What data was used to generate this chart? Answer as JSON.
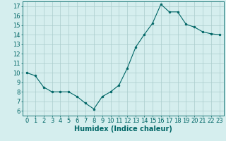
{
  "x": [
    0,
    1,
    2,
    3,
    4,
    5,
    6,
    7,
    8,
    9,
    10,
    11,
    12,
    13,
    14,
    15,
    16,
    17,
    18,
    19,
    20,
    21,
    22,
    23
  ],
  "y": [
    10,
    9.7,
    8.5,
    8.0,
    8.0,
    8.0,
    7.5,
    6.8,
    6.2,
    7.5,
    8.0,
    8.7,
    10.5,
    12.7,
    14.0,
    15.2,
    17.2,
    16.4,
    16.4,
    15.1,
    14.8,
    14.3,
    14.1,
    14.0
  ],
  "xlabel": "Humidex (Indice chaleur)",
  "xlim": [
    -0.5,
    23.5
  ],
  "ylim": [
    5.5,
    17.5
  ],
  "yticks": [
    6,
    7,
    8,
    9,
    10,
    11,
    12,
    13,
    14,
    15,
    16,
    17
  ],
  "xticks": [
    0,
    1,
    2,
    3,
    4,
    5,
    6,
    7,
    8,
    9,
    10,
    11,
    12,
    13,
    14,
    15,
    16,
    17,
    18,
    19,
    20,
    21,
    22,
    23
  ],
  "line_color": "#006666",
  "marker_color": "#006666",
  "bg_color": "#d5eeee",
  "grid_color": "#aacccc",
  "tick_label_fontsize": 6,
  "xlabel_fontsize": 7
}
